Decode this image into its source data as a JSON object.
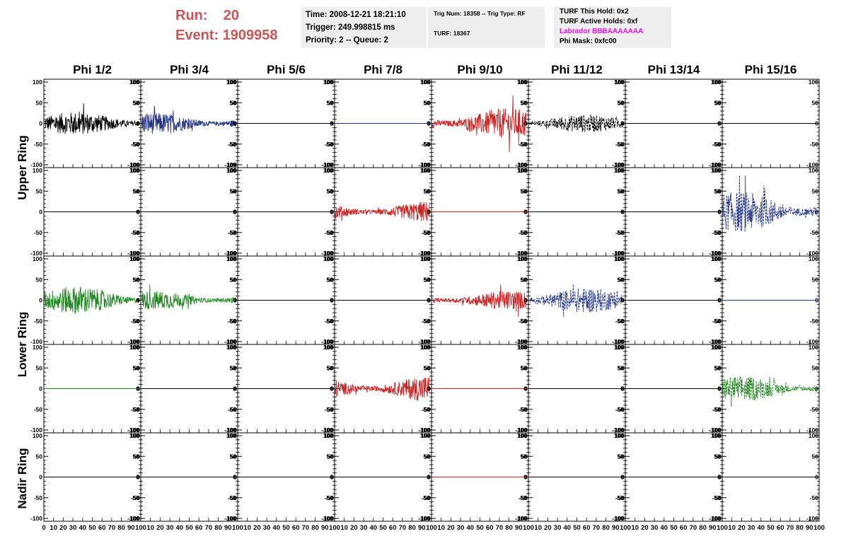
{
  "header": {
    "run_label": "Run:",
    "run_value": "20",
    "event_label": "Event:",
    "event_value": "1909958"
  },
  "info": {
    "time": "Time: 2008-12-21 18:21:10",
    "trigger": "Trigger: 249.998815 ms",
    "priority_queue": "Priority: 2 -- Queue: 2",
    "trig_num_type": "Trig Num: 18358 -- Trig Type: RF",
    "turf": "TURF: 18367",
    "turf_this_hold": "TURF This Hold: 0x2",
    "turf_active_holds": "TURF Active Holds: 0xf",
    "labrador": "Labrador BBBAAAAAAA",
    "phi_mask": "Phi Mask: 0xfc00"
  },
  "colors": {
    "title": "#cc5555",
    "labrador": "#ee11ee",
    "black": "#000000",
    "blue": "#223388",
    "red": "#cc2222",
    "green": "#228822",
    "infobox_bg": "#eeeeee"
  },
  "chart_data": {
    "type": "line",
    "column_titles": [
      "Phi 1/2",
      "Phi 3/4",
      "Phi 5/6",
      "Phi 7/8",
      "Phi 9/10",
      "Phi 11/12",
      "Phi 13/14",
      "Phi 15/16"
    ],
    "ring_labels": [
      "Upper Ring",
      "Lower Ring",
      "Nadir Ring"
    ],
    "ylim": [
      -100,
      100
    ],
    "xlim": [
      0,
      100
    ],
    "y_tick_labels": [
      "100",
      "50",
      "0",
      "-50",
      "-100"
    ],
    "x_tick_labels": [
      "0",
      "10",
      "20",
      "30",
      "40",
      "50",
      "60",
      "70",
      "80",
      "90",
      "100"
    ],
    "rows": [
      [
        {
          "color": "black",
          "style": "solid",
          "amp": 18
        },
        {
          "color": "blue",
          "style": "solid",
          "amp": 17
        },
        {
          "color": "black",
          "style": "solid",
          "amp": 0
        },
        {
          "color": "blue",
          "style": "solid",
          "amp": 0
        },
        {
          "color": "red",
          "style": "solid",
          "amp": 24
        },
        {
          "color": "black",
          "style": "dashed",
          "amp": 14
        },
        {
          "color": "black",
          "style": "solid",
          "amp": 0
        },
        {
          "color": "black",
          "style": "solid",
          "amp": 0
        }
      ],
      [
        {
          "color": "black",
          "style": "solid",
          "amp": 0
        },
        {
          "color": "black",
          "style": "solid",
          "amp": 0
        },
        {
          "color": "black",
          "style": "solid",
          "amp": 0
        },
        {
          "color": "red",
          "style": "solid",
          "amp": 17
        },
        {
          "color": "red",
          "style": "solid",
          "amp": 0
        },
        {
          "color": "black",
          "style": "solid",
          "amp": 0
        },
        {
          "color": "black",
          "style": "solid",
          "amp": 0
        },
        {
          "color": "blue",
          "style": "dashed",
          "amp": 32
        }
      ],
      [
        {
          "color": "green",
          "style": "solid",
          "amp": 22
        },
        {
          "color": "green",
          "style": "solid",
          "amp": 15
        },
        {
          "color": "black",
          "style": "solid",
          "amp": 0
        },
        {
          "color": "black",
          "style": "solid",
          "amp": 0
        },
        {
          "color": "red",
          "style": "solid",
          "amp": 15
        },
        {
          "color": "blue",
          "style": "dashed",
          "amp": 20
        },
        {
          "color": "black",
          "style": "solid",
          "amp": 0
        },
        {
          "color": "blue",
          "style": "solid",
          "amp": 0
        }
      ],
      [
        {
          "color": "green",
          "style": "solid",
          "amp": 0
        },
        {
          "color": "black",
          "style": "solid",
          "amp": 0
        },
        {
          "color": "black",
          "style": "solid",
          "amp": 0
        },
        {
          "color": "red",
          "style": "solid",
          "amp": 21
        },
        {
          "color": "red",
          "style": "solid",
          "amp": 0
        },
        {
          "color": "black",
          "style": "solid",
          "amp": 0
        },
        {
          "color": "black",
          "style": "solid",
          "amp": 0
        },
        {
          "color": "green",
          "style": "dashed",
          "amp": 20
        }
      ],
      [
        {
          "color": "black",
          "style": "solid",
          "amp": 0
        },
        {
          "color": "black",
          "style": "solid",
          "amp": 0
        },
        {
          "color": "black",
          "style": "solid",
          "amp": 0
        },
        {
          "color": "black",
          "style": "solid",
          "amp": 0
        },
        {
          "color": "red",
          "style": "solid",
          "amp": 0
        },
        {
          "color": "black",
          "style": "solid",
          "amp": 0
        },
        {
          "color": "black",
          "style": "solid",
          "amp": 0
        },
        {
          "color": "black",
          "style": "solid",
          "amp": 0
        }
      ]
    ]
  }
}
